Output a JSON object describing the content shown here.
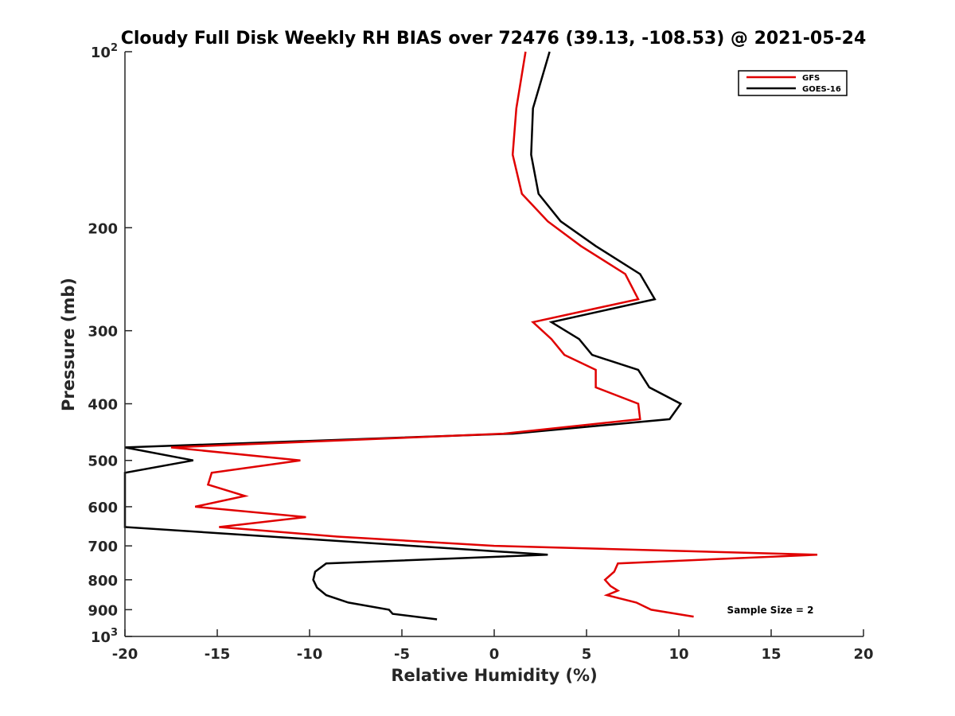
{
  "chart_data": {
    "type": "line",
    "title": "Cloudy Full Disk Weekly RH BIAS over 72476 (39.13, -108.53) @ 2021-05-24",
    "xlabel": "Relative Humidity (%)",
    "ylabel": "Pressure (mb)",
    "xlim": [
      -20,
      20
    ],
    "ylim": [
      100,
      1000
    ],
    "yscale": "log",
    "yreversed": true,
    "grid": false,
    "legend_position": "top-right",
    "x_ticks": [
      -20,
      -15,
      -10,
      -5,
      0,
      5,
      10,
      15,
      20
    ],
    "x_tick_labels": [
      "-20",
      "-15",
      "-10",
      "-5",
      "0",
      "5",
      "10",
      "15",
      "20"
    ],
    "y_ticks": [
      100,
      200,
      300,
      400,
      500,
      600,
      700,
      800,
      900,
      1000
    ],
    "y_tick_labels": [
      {
        "base": "10",
        "exp": "2"
      },
      {
        "base": "200",
        "exp": ""
      },
      {
        "base": "300",
        "exp": ""
      },
      {
        "base": "400",
        "exp": ""
      },
      {
        "base": "500",
        "exp": ""
      },
      {
        "base": "600",
        "exp": ""
      },
      {
        "base": "700",
        "exp": ""
      },
      {
        "base": "800",
        "exp": ""
      },
      {
        "base": "900",
        "exp": ""
      },
      {
        "base": "10",
        "exp": "3"
      }
    ],
    "annotation": "Sample Size = 2",
    "series": [
      {
        "name": "GFS",
        "color": "#e00000",
        "points": [
          [
            1.7,
            100
          ],
          [
            1.2,
            125
          ],
          [
            1.0,
            150
          ],
          [
            1.5,
            175
          ],
          [
            2.9,
            195
          ],
          [
            4.7,
            215
          ],
          [
            7.1,
            240
          ],
          [
            7.8,
            265
          ],
          [
            2.1,
            290
          ],
          [
            3.1,
            310
          ],
          [
            3.8,
            330
          ],
          [
            5.5,
            350
          ],
          [
            5.5,
            375
          ],
          [
            7.8,
            400
          ],
          [
            7.9,
            425
          ],
          [
            0.5,
            450
          ],
          [
            -17.5,
            475
          ],
          [
            -10.5,
            500
          ],
          [
            -15.3,
            525
          ],
          [
            -15.5,
            550
          ],
          [
            -13.5,
            575
          ],
          [
            -16.2,
            600
          ],
          [
            -10.2,
            625
          ],
          [
            -14.9,
            650
          ],
          [
            -8.5,
            675
          ],
          [
            0.0,
            700
          ],
          [
            17.5,
            725
          ],
          [
            6.7,
            750
          ],
          [
            6.5,
            775
          ],
          [
            6.0,
            800
          ],
          [
            6.3,
            820
          ],
          [
            6.7,
            835
          ],
          [
            6.1,
            850
          ],
          [
            7.7,
            875
          ],
          [
            8.5,
            900
          ],
          [
            10.8,
            925
          ]
        ]
      },
      {
        "name": "GOES-16",
        "color": "#000000",
        "points": [
          [
            3.0,
            100
          ],
          [
            2.1,
            125
          ],
          [
            2.0,
            150
          ],
          [
            2.4,
            175
          ],
          [
            3.6,
            195
          ],
          [
            5.5,
            215
          ],
          [
            7.9,
            240
          ],
          [
            8.7,
            265
          ],
          [
            3.1,
            290
          ],
          [
            4.6,
            310
          ],
          [
            5.3,
            330
          ],
          [
            7.8,
            350
          ],
          [
            8.4,
            375
          ],
          [
            10.1,
            400
          ],
          [
            9.5,
            425
          ],
          [
            1.0,
            450
          ],
          [
            -20.0,
            475
          ],
          [
            -16.3,
            500
          ],
          [
            -20.0,
            525
          ],
          [
            -20.0,
            650
          ],
          [
            2.9,
            725
          ],
          [
            -9.1,
            750
          ],
          [
            -9.7,
            775
          ],
          [
            -9.8,
            800
          ],
          [
            -9.6,
            825
          ],
          [
            -9.1,
            850
          ],
          [
            -7.9,
            875
          ],
          [
            -5.7,
            900
          ],
          [
            -5.5,
            915
          ],
          [
            -3.1,
            935
          ]
        ]
      }
    ]
  }
}
